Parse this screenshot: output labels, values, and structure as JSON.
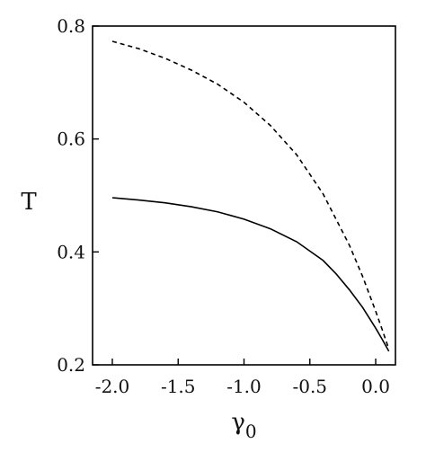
{
  "chart_data": {
    "type": "line",
    "xlabel": "γ",
    "xlabel_subscript": "0",
    "ylabel": "T",
    "xlim": [
      -2.15,
      0.15
    ],
    "ylim": [
      0.2,
      0.8
    ],
    "x_ticks": [
      -2.0,
      -1.5,
      -1.0,
      -0.5,
      0.0
    ],
    "x_tick_labels": [
      "-2.0",
      "-1.5",
      "-1.0",
      "-0.5",
      "0.0"
    ],
    "y_ticks": [
      0.2,
      0.4,
      0.6,
      0.8
    ],
    "y_tick_labels": [
      "0.2",
      "0.4",
      "0.6",
      "0.8"
    ],
    "grid": false,
    "series": [
      {
        "style": "solid",
        "color": "#000000",
        "points": [
          [
            -2.0,
            0.496
          ],
          [
            -1.8,
            0.492
          ],
          [
            -1.6,
            0.487
          ],
          [
            -1.4,
            0.48
          ],
          [
            -1.2,
            0.471
          ],
          [
            -1.0,
            0.458
          ],
          [
            -0.8,
            0.441
          ],
          [
            -0.6,
            0.418
          ],
          [
            -0.4,
            0.385
          ],
          [
            -0.3,
            0.361
          ],
          [
            -0.2,
            0.333
          ],
          [
            -0.1,
            0.302
          ],
          [
            0.0,
            0.265
          ],
          [
            0.05,
            0.245
          ],
          [
            0.1,
            0.224
          ]
        ]
      },
      {
        "style": "dashed",
        "color": "#000000",
        "points": [
          [
            -2.0,
            0.773
          ],
          [
            -1.8,
            0.76
          ],
          [
            -1.6,
            0.743
          ],
          [
            -1.4,
            0.722
          ],
          [
            -1.2,
            0.697
          ],
          [
            -1.0,
            0.665
          ],
          [
            -0.8,
            0.624
          ],
          [
            -0.6,
            0.572
          ],
          [
            -0.4,
            0.503
          ],
          [
            -0.2,
            0.412
          ],
          [
            -0.1,
            0.357
          ],
          [
            0.0,
            0.295
          ],
          [
            0.05,
            0.262
          ],
          [
            0.1,
            0.228
          ]
        ]
      }
    ]
  }
}
